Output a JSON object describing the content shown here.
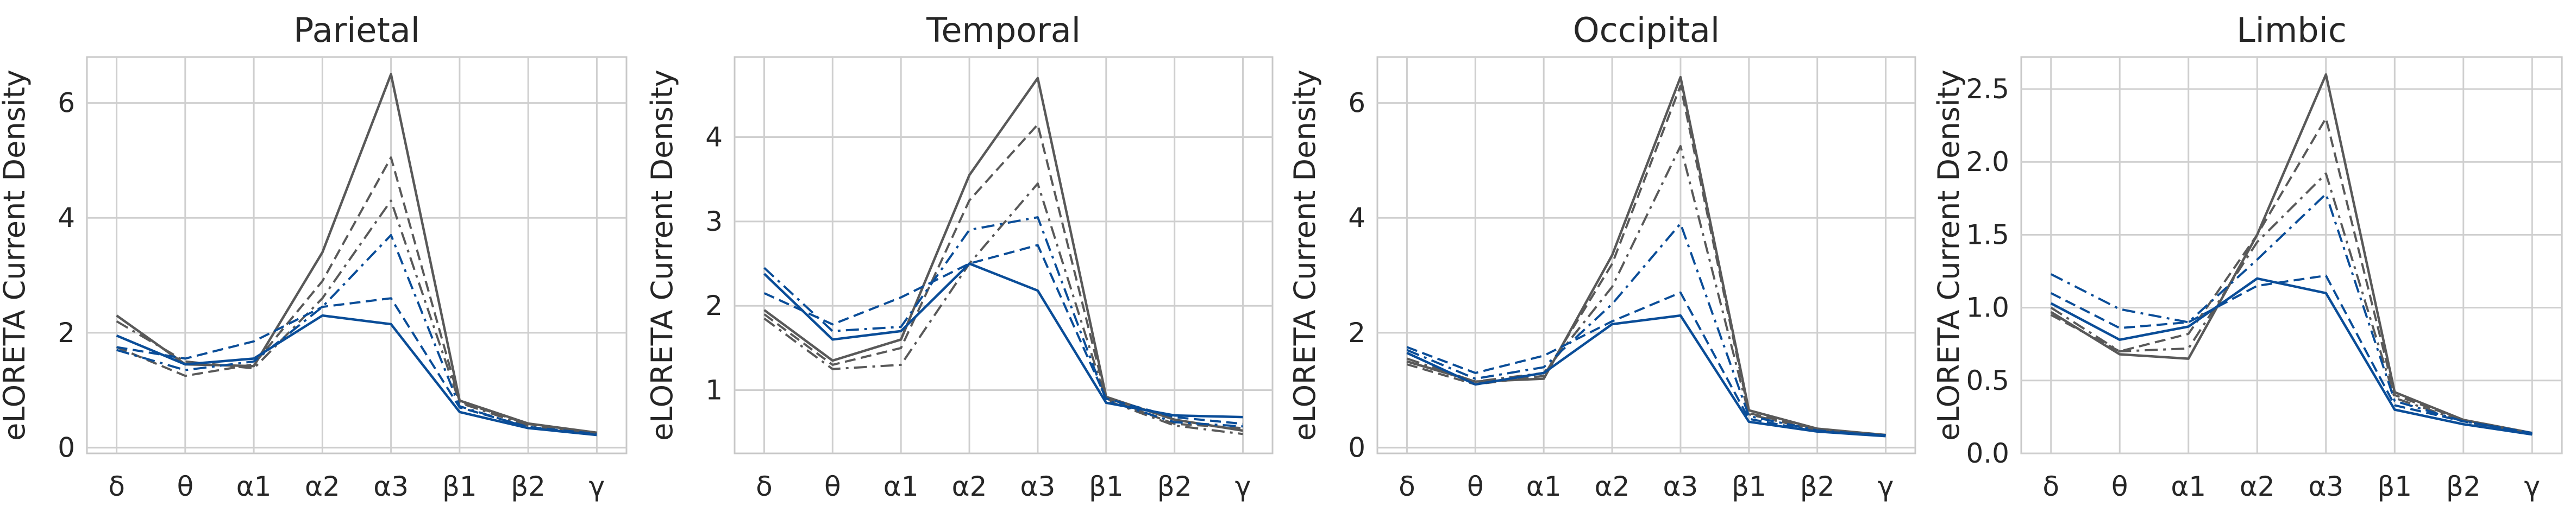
{
  "chart_data": [
    {
      "type": "line",
      "title": "Parietal",
      "ylabel": "eLORETA Current Density",
      "categories": [
        "δ",
        "θ",
        "α1",
        "α2",
        "α3",
        "β1",
        "β2",
        "γ"
      ],
      "ylim": [
        -0.1,
        6.8
      ],
      "yticks": [
        0,
        2,
        4,
        6
      ],
      "grid": true,
      "series": [
        {
          "style": "gray-solid",
          "values": [
            2.3,
            1.45,
            1.42,
            3.4,
            6.5,
            0.82,
            0.42,
            0.26
          ]
        },
        {
          "style": "gray-dashed",
          "values": [
            1.75,
            1.25,
            1.45,
            2.9,
            5.05,
            0.8,
            0.41,
            0.25
          ]
        },
        {
          "style": "gray-dashdot",
          "values": [
            2.2,
            1.5,
            1.38,
            2.6,
            4.3,
            0.78,
            0.38,
            0.24
          ]
        },
        {
          "style": "blue-dashdot",
          "values": [
            1.7,
            1.35,
            1.5,
            2.45,
            3.7,
            0.72,
            0.35,
            0.22
          ]
        },
        {
          "style": "blue-dashed",
          "values": [
            1.75,
            1.55,
            1.85,
            2.45,
            2.6,
            0.7,
            0.36,
            0.24
          ]
        },
        {
          "style": "blue-solid",
          "values": [
            1.95,
            1.45,
            1.55,
            2.3,
            2.15,
            0.62,
            0.34,
            0.22
          ]
        }
      ]
    },
    {
      "type": "line",
      "title": "Temporal",
      "ylabel": "eLORETA Current Density",
      "categories": [
        "δ",
        "θ",
        "α1",
        "α2",
        "α3",
        "β1",
        "β2",
        "γ"
      ],
      "ylim": [
        0.25,
        4.95
      ],
      "yticks": [
        1,
        2,
        3,
        4
      ],
      "grid": true,
      "series": [
        {
          "style": "gray-solid",
          "values": [
            1.95,
            1.35,
            1.6,
            3.55,
            4.7,
            0.92,
            0.65,
            0.52
          ]
        },
        {
          "style": "gray-dashed",
          "values": [
            1.9,
            1.3,
            1.5,
            3.25,
            4.15,
            0.9,
            0.6,
            0.55
          ]
        },
        {
          "style": "gray-dashdot",
          "values": [
            1.85,
            1.25,
            1.3,
            2.5,
            3.45,
            0.88,
            0.58,
            0.48
          ]
        },
        {
          "style": "blue-dashdot",
          "values": [
            2.45,
            1.7,
            1.75,
            2.9,
            3.05,
            0.88,
            0.62,
            0.57
          ]
        },
        {
          "style": "blue-dashed",
          "values": [
            2.15,
            1.78,
            2.1,
            2.5,
            2.72,
            0.9,
            0.68,
            0.6
          ]
        },
        {
          "style": "blue-solid",
          "values": [
            2.38,
            1.6,
            1.7,
            2.5,
            2.18,
            0.85,
            0.7,
            0.68
          ]
        }
      ]
    },
    {
      "type": "line",
      "title": "Occipital",
      "ylabel": "eLORETA Current Density",
      "categories": [
        "δ",
        "θ",
        "α1",
        "α2",
        "α3",
        "β1",
        "β2",
        "γ"
      ],
      "ylim": [
        -0.1,
        6.8
      ],
      "yticks": [
        0,
        2,
        4,
        6
      ],
      "grid": true,
      "series": [
        {
          "style": "gray-solid",
          "values": [
            1.5,
            1.15,
            1.2,
            3.35,
            6.45,
            0.65,
            0.33,
            0.22
          ]
        },
        {
          "style": "gray-dashed",
          "values": [
            1.45,
            1.1,
            1.25,
            3.2,
            6.3,
            0.6,
            0.32,
            0.22
          ]
        },
        {
          "style": "gray-dashdot",
          "values": [
            1.55,
            1.15,
            1.3,
            2.8,
            5.25,
            0.58,
            0.3,
            0.21
          ]
        },
        {
          "style": "blue-dashdot",
          "values": [
            1.7,
            1.2,
            1.4,
            2.5,
            3.9,
            0.55,
            0.3,
            0.21
          ]
        },
        {
          "style": "blue-dashed",
          "values": [
            1.75,
            1.3,
            1.6,
            2.2,
            2.7,
            0.5,
            0.28,
            0.22
          ]
        },
        {
          "style": "blue-solid",
          "values": [
            1.65,
            1.1,
            1.3,
            2.15,
            2.3,
            0.45,
            0.28,
            0.2
          ]
        }
      ]
    },
    {
      "type": "line",
      "title": "Limbic",
      "ylabel": "eLORETA Current Density",
      "categories": [
        "δ",
        "θ",
        "α1",
        "α2",
        "α3",
        "β1",
        "β2",
        "γ"
      ],
      "ylim": [
        0.0,
        2.72
      ],
      "yticks": [
        0.0,
        0.5,
        1.0,
        1.5,
        2.0,
        2.5
      ],
      "grid": true,
      "series": [
        {
          "style": "gray-solid",
          "values": [
            0.97,
            0.68,
            0.65,
            1.5,
            2.6,
            0.42,
            0.23,
            0.14
          ]
        },
        {
          "style": "gray-dashed",
          "values": [
            0.95,
            0.7,
            0.82,
            1.5,
            2.3,
            0.4,
            0.23,
            0.14
          ]
        },
        {
          "style": "gray-dashdot",
          "values": [
            1.0,
            0.7,
            0.72,
            1.45,
            1.92,
            0.38,
            0.22,
            0.13
          ]
        },
        {
          "style": "blue-dashdot",
          "values": [
            1.23,
            0.99,
            0.9,
            1.33,
            1.78,
            0.36,
            0.22,
            0.14
          ]
        },
        {
          "style": "blue-dashed",
          "values": [
            1.1,
            0.86,
            0.9,
            1.15,
            1.22,
            0.33,
            0.22,
            0.14
          ]
        },
        {
          "style": "blue-solid",
          "values": [
            1.03,
            0.78,
            0.87,
            1.2,
            1.1,
            0.3,
            0.2,
            0.13
          ]
        }
      ]
    }
  ],
  "styles": {
    "gray-solid": {
      "color": "#595959",
      "dash": "solid"
    },
    "gray-dashed": {
      "color": "#595959",
      "dash": "dashed"
    },
    "gray-dashdot": {
      "color": "#595959",
      "dash": "dashdot"
    },
    "blue-dashdot": {
      "color": "#0a4d98",
      "dash": "dashdot"
    },
    "blue-dashed": {
      "color": "#0a4d98",
      "dash": "dashed"
    },
    "blue-solid": {
      "color": "#0a4d98",
      "dash": "solid"
    }
  }
}
